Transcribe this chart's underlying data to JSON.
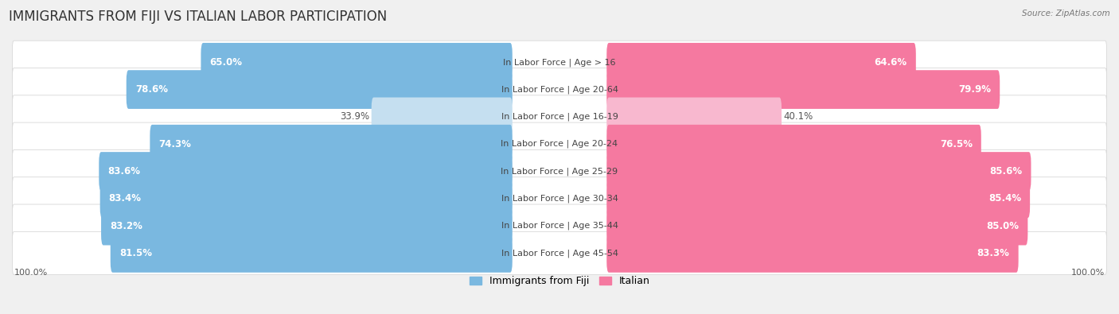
{
  "title": "IMMIGRANTS FROM FIJI VS ITALIAN LABOR PARTICIPATION",
  "source": "Source: ZipAtlas.com",
  "categories": [
    "In Labor Force | Age > 16",
    "In Labor Force | Age 20-64",
    "In Labor Force | Age 16-19",
    "In Labor Force | Age 20-24",
    "In Labor Force | Age 25-29",
    "In Labor Force | Age 30-34",
    "In Labor Force | Age 35-44",
    "In Labor Force | Age 45-54"
  ],
  "fiji_values": [
    65.0,
    78.6,
    33.9,
    74.3,
    83.6,
    83.4,
    83.2,
    81.5
  ],
  "italian_values": [
    64.6,
    79.9,
    40.1,
    76.5,
    85.6,
    85.4,
    85.0,
    83.3
  ],
  "fiji_color": "#7ab8e0",
  "fiji_color_light": "#c5dff0",
  "italian_color": "#f579a0",
  "italian_color_light": "#f8b8cf",
  "background_color": "#f0f0f0",
  "row_bg_color": "#ffffff",
  "row_border_color": "#d8d8d8",
  "title_fontsize": 12,
  "value_fontsize": 8.5,
  "cat_fontsize": 8.0,
  "max_value": 100.0,
  "light_row_index": 2
}
